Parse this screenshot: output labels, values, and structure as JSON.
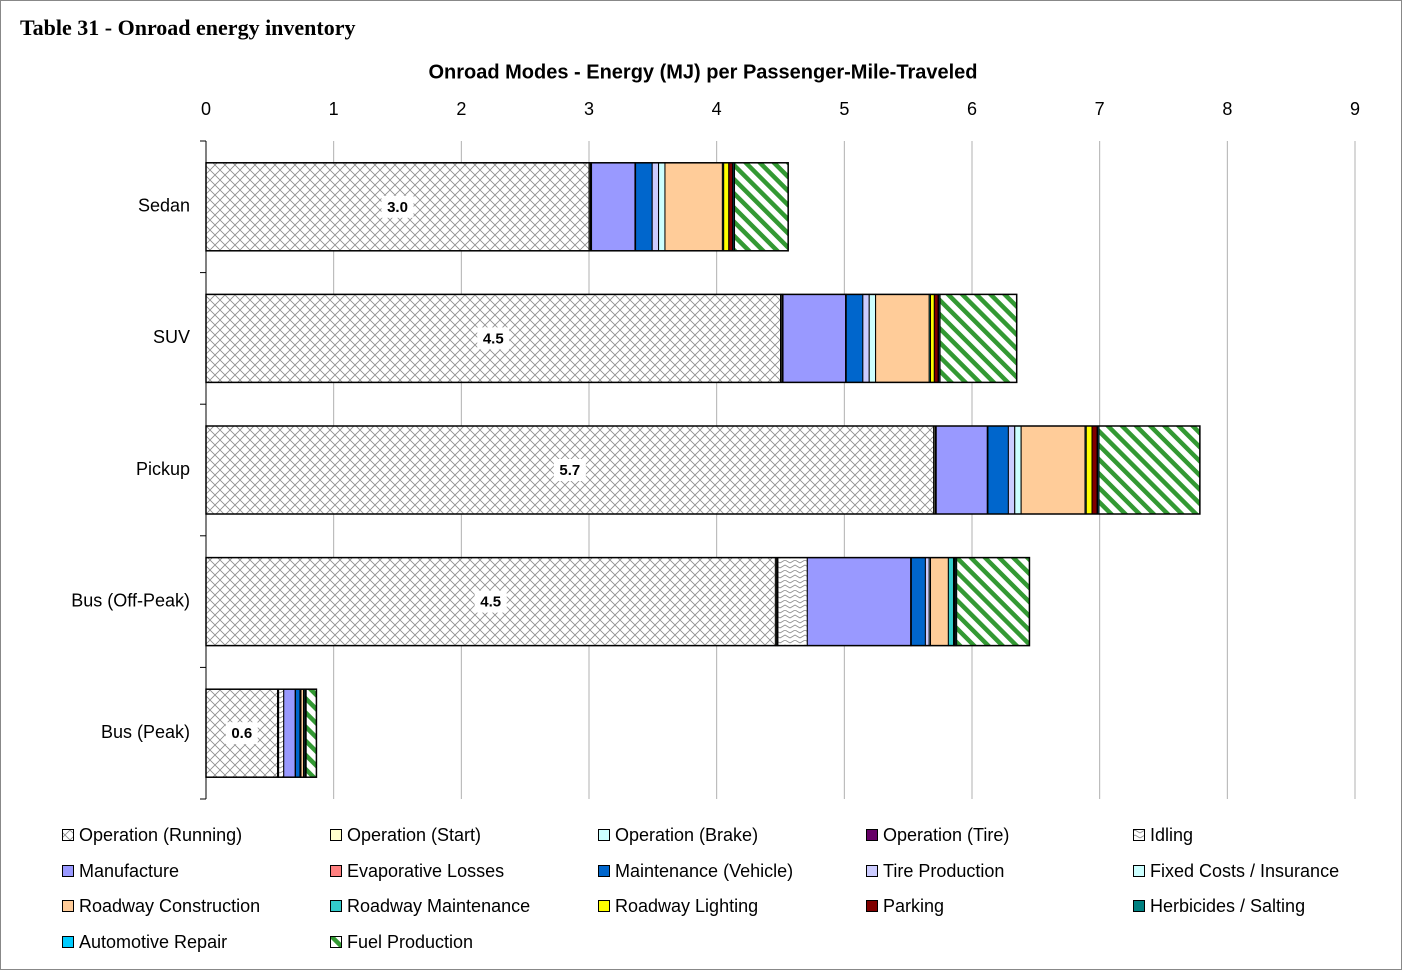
{
  "header": {
    "title": "Table 31 - Onroad energy inventory"
  },
  "chart_data": {
    "type": "stacked-barh",
    "title": "Onroad Modes - Energy (MJ) per Passenger-Mile-Traveled",
    "categories": [
      "Sedan",
      "SUV",
      "Pickup",
      "Bus (Off-Peak)",
      "Bus (Peak)"
    ],
    "xlim": [
      0,
      9
    ],
    "xticks": [
      0,
      1,
      2,
      3,
      4,
      5,
      6,
      7,
      8,
      9
    ],
    "grid": true,
    "series": [
      {
        "name": "Operation (Running)",
        "color": "#8c8c8c",
        "pattern": "crosshatch",
        "values": [
          3.0,
          4.5,
          5.7,
          4.46,
          0.56
        ],
        "value_labels": [
          "3.0",
          "4.5",
          "5.7",
          "4.5",
          "0.6"
        ]
      },
      {
        "name": "Operation (Start)",
        "color": "#ffffcc",
        "values": [
          0.01,
          0.01,
          0.01,
          0.01,
          0.005
        ]
      },
      {
        "name": "Operation (Brake)",
        "color": "#ccffff",
        "values": [
          0.005,
          0.005,
          0.005,
          0.005,
          0.002
        ]
      },
      {
        "name": "Operation (Tire)",
        "color": "#660066",
        "values": [
          0.005,
          0.005,
          0.005,
          0.005,
          0.002
        ]
      },
      {
        "name": "Idling",
        "color": "#8c8c8c",
        "pattern": "zigzag",
        "values": [
          0,
          0,
          0,
          0.23,
          0.04
        ]
      },
      {
        "name": "Manufacture",
        "color": "#9999ff",
        "values": [
          0.34,
          0.49,
          0.4,
          0.81,
          0.09
        ]
      },
      {
        "name": "Evaporative Losses",
        "color": "#ff8080",
        "values": [
          0.005,
          0.005,
          0.005,
          0.005,
          0.002
        ]
      },
      {
        "name": "Maintenance (Vehicle)",
        "color": "#0066cc",
        "values": [
          0.13,
          0.13,
          0.16,
          0.11,
          0.035
        ]
      },
      {
        "name": "Tire Production",
        "color": "#ccccff",
        "values": [
          0.05,
          0.05,
          0.05,
          0.03,
          0.005
        ]
      },
      {
        "name": "Fixed Costs / Insurance",
        "color": "#ccffff",
        "values": [
          0.05,
          0.05,
          0.05,
          0.01,
          0.003
        ]
      },
      {
        "name": "Roadway Construction",
        "color": "#ffcc99",
        "values": [
          0.45,
          0.42,
          0.5,
          0.14,
          0.02
        ]
      },
      {
        "name": "Roadway Maintenance",
        "color": "#33cccc",
        "values": [
          0.01,
          0.01,
          0.01,
          0.04,
          0.01
        ]
      },
      {
        "name": "Roadway Lighting",
        "color": "#ffff00",
        "values": [
          0.04,
          0.03,
          0.045,
          0.005,
          0.002
        ]
      },
      {
        "name": "Parking",
        "color": "#800000",
        "values": [
          0.03,
          0.03,
          0.04,
          0.005,
          0.002
        ]
      },
      {
        "name": "Herbicides / Salting",
        "color": "#008080",
        "values": [
          0.005,
          0.005,
          0.005,
          0.005,
          0.002
        ]
      },
      {
        "name": "Automotive Repair",
        "color": "#00ccff",
        "values": [
          0.01,
          0.01,
          0.01,
          0.01,
          0.005
        ]
      },
      {
        "name": "Fuel Production",
        "color": "#339933",
        "pattern": "stripes",
        "values": [
          0.42,
          0.6,
          0.79,
          0.57,
          0.08
        ]
      }
    ]
  }
}
